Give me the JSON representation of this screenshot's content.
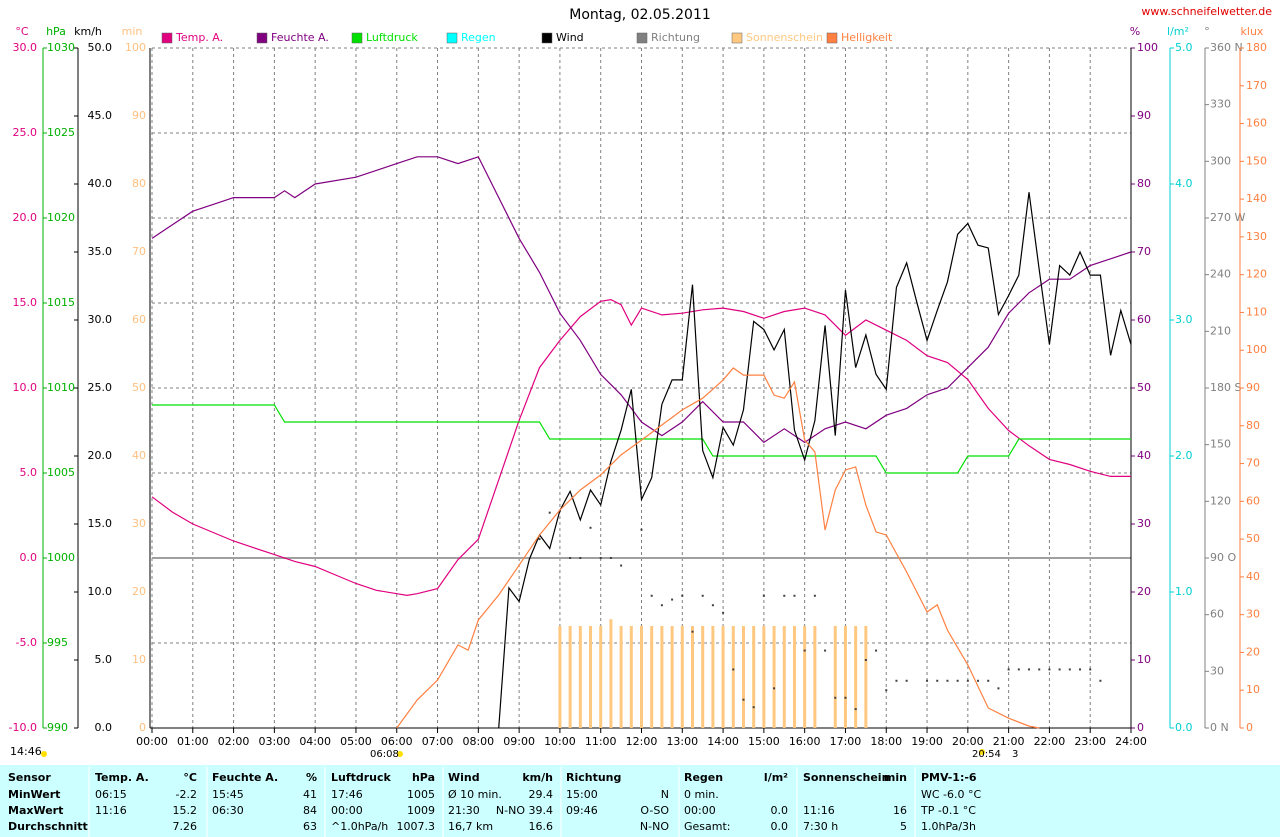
{
  "chart_data": {
    "type": "line",
    "title": "Montag, 02.05.2011",
    "source": "www.schneifelwetter.de",
    "time_stamp": "14:46",
    "sunrise": "06:08",
    "sunset": "20:54",
    "moon": "3",
    "xlim": [
      0,
      24
    ],
    "xticks": [
      {
        "value": 0,
        "label": "00:00"
      },
      {
        "value": 1,
        "label": "01:00"
      },
      {
        "value": 2,
        "label": "02:00"
      },
      {
        "value": 3,
        "label": "03:00"
      },
      {
        "value": 4,
        "label": "04:00"
      },
      {
        "value": 5,
        "label": "05:00"
      },
      {
        "value": 6,
        "label": "06:00"
      },
      {
        "value": 7,
        "label": "07:00"
      },
      {
        "value": 8,
        "label": "08:00"
      },
      {
        "value": 9,
        "label": "09:00"
      },
      {
        "value": 10,
        "label": "10:00"
      },
      {
        "value": 11,
        "label": "11:00"
      },
      {
        "value": 12,
        "label": "12:00"
      },
      {
        "value": 13,
        "label": "13:00"
      },
      {
        "value": 14,
        "label": "14:00"
      },
      {
        "value": 15,
        "label": "15:00"
      },
      {
        "value": 16,
        "label": "16:00"
      },
      {
        "value": 17,
        "label": "17:00"
      },
      {
        "value": 18,
        "label": "18:00"
      },
      {
        "value": 19,
        "label": "19:00"
      },
      {
        "value": 20,
        "label": "20:00"
      },
      {
        "value": 21,
        "label": "21:00"
      },
      {
        "value": 22,
        "label": "22:00"
      },
      {
        "value": 23,
        "label": "23:00"
      },
      {
        "value": 24,
        "label": "24:00"
      }
    ],
    "grid": true,
    "axes": [
      {
        "label": "°C",
        "color": "#e0007f",
        "grid": true,
        "ylim": [
          -10,
          30
        ],
        "yticks": [
          {
            "value": -10,
            "label": "-10.0"
          },
          {
            "value": -5,
            "label": "-5.0"
          },
          {
            "value": 0,
            "label": "0.0"
          },
          {
            "value": 5,
            "label": "5.0"
          },
          {
            "value": 10,
            "label": "10.0"
          },
          {
            "value": 15,
            "label": "15.0"
          },
          {
            "value": 20,
            "label": "20.0"
          },
          {
            "value": 25,
            "label": "25.0"
          },
          {
            "value": 30,
            "label": "30.0"
          }
        ]
      },
      {
        "label": "hPa",
        "color": "#00b000",
        "ylim": [
          990,
          1030
        ],
        "yticks": [
          990,
          995,
          1000,
          1005,
          1010,
          1015,
          1020,
          1025,
          1030
        ]
      },
      {
        "label": "km/h",
        "color": "#000000",
        "ylim": [
          0,
          50
        ],
        "yticks": [
          {
            "value": 0,
            "label": "0.0"
          },
          {
            "value": 5,
            "label": "5.0"
          },
          {
            "value": 10,
            "label": "10.0"
          },
          {
            "value": 15,
            "label": "15.0"
          },
          {
            "value": 20,
            "label": "20.0"
          },
          {
            "value": 25,
            "label": "25.0"
          },
          {
            "value": 30,
            "label": "30.0"
          },
          {
            "value": 35,
            "label": "35.0"
          },
          {
            "value": 40,
            "label": "40.0"
          },
          {
            "value": 45,
            "label": "45.0"
          },
          {
            "value": 50,
            "label": "50.0"
          }
        ]
      },
      {
        "label": "min",
        "color": "#ffc080",
        "ylim": [
          0,
          100
        ],
        "yticks": [
          0,
          10,
          20,
          30,
          40,
          50,
          60,
          70,
          80,
          90,
          100
        ]
      },
      {
        "label": "%",
        "color": "#800080",
        "ylim": [
          0,
          100
        ],
        "yticks": [
          0,
          10,
          20,
          30,
          40,
          50,
          60,
          70,
          80,
          90,
          100
        ]
      },
      {
        "label": "l/m²",
        "color": "#00d0d0",
        "ylim": [
          0,
          5
        ],
        "yticks": [
          {
            "value": 0,
            "label": "0.0"
          },
          {
            "value": 1,
            "label": "1.0"
          },
          {
            "value": 2,
            "label": "2.0"
          },
          {
            "value": 3,
            "label": "3.0"
          },
          {
            "value": 4,
            "label": "4.0"
          },
          {
            "value": 5,
            "label": "5.0"
          }
        ]
      },
      {
        "label": "°",
        "color": "#808080",
        "ylim": [
          0,
          360
        ],
        "yticks": [
          {
            "value": 0,
            "label": "0 N"
          },
          30,
          60,
          {
            "value": 90,
            "label": "90 O"
          },
          120,
          150,
          {
            "value": 180,
            "label": "180 S"
          },
          210,
          240,
          {
            "value": 270,
            "label": "270 W"
          },
          300,
          330,
          {
            "value": 360,
            "label": "360 N"
          }
        ]
      },
      {
        "label": "klux",
        "color": "#ff8040",
        "ylim": [
          0,
          180
        ],
        "yticks": [
          0,
          10,
          20,
          30,
          40,
          50,
          60,
          70,
          80,
          90,
          100,
          110,
          120,
          130,
          140,
          150,
          160,
          170,
          180
        ]
      }
    ],
    "series": [
      {
        "name": "Temp. A.",
        "color": "#e0007f",
        "type": "line",
        "axis": "°C",
        "x": [
          0,
          0.5,
          1,
          1.5,
          2,
          2.5,
          3,
          3.5,
          4,
          4.5,
          5,
          5.5,
          6,
          6.25,
          6.5,
          7,
          7.5,
          8,
          8.5,
          9,
          9.5,
          10,
          10.5,
          11,
          11.25,
          11.5,
          11.75,
          12,
          12.5,
          13,
          13.5,
          14,
          14.5,
          15,
          15.5,
          16,
          16.5,
          17,
          17.5,
          18,
          18.5,
          19,
          19.5,
          20,
          20.5,
          21,
          21.5,
          22,
          22.5,
          23,
          23.5,
          24
        ],
        "values": [
          3.6,
          2.7,
          2.0,
          1.5,
          1.0,
          0.6,
          0.2,
          -0.2,
          -0.5,
          -1.0,
          -1.5,
          -1.9,
          -2.1,
          -2.2,
          -2.1,
          -1.8,
          -0.1,
          1.1,
          4.6,
          8.1,
          11.2,
          12.8,
          14.2,
          15.1,
          15.2,
          14.9,
          13.7,
          14.7,
          14.3,
          14.4,
          14.6,
          14.7,
          14.5,
          14.1,
          14.5,
          14.7,
          14.3,
          13.1,
          14.0,
          13.4,
          12.8,
          11.9,
          11.5,
          10.5,
          8.8,
          7.5,
          6.6,
          5.8,
          5.5,
          5.1,
          4.8,
          4.8
        ]
      },
      {
        "name": "Feuchte A.",
        "color": "#800080",
        "type": "line",
        "axis": "%",
        "x": [
          0,
          0.5,
          1,
          1.5,
          2,
          3,
          3.25,
          3.5,
          4,
          5,
          5.5,
          6,
          6.5,
          7,
          7.5,
          8,
          8.5,
          9,
          9.5,
          10,
          10.5,
          11,
          11.5,
          12,
          12.5,
          13,
          13.5,
          14,
          14.5,
          15,
          15.5,
          16,
          16.5,
          17,
          17.5,
          18,
          18.5,
          19,
          19.5,
          20,
          20.5,
          21,
          21.5,
          22,
          22.5,
          23,
          23.5,
          24
        ],
        "values": [
          72,
          74,
          76,
          77,
          78,
          78,
          79,
          78,
          80,
          81,
          82,
          83,
          84,
          84,
          83,
          84,
          78,
          72,
          67,
          61,
          57,
          52,
          49,
          45,
          43,
          45,
          48,
          45,
          45,
          42,
          44,
          42,
          44,
          45,
          44,
          46,
          47,
          49,
          50,
          53,
          56,
          61,
          64,
          66,
          66,
          68,
          69,
          70
        ]
      },
      {
        "name": "Luftdruck",
        "color": "#00e000",
        "type": "line",
        "axis": "hPa",
        "x": [
          0,
          3,
          3.25,
          9.5,
          9.75,
          13.5,
          13.75,
          17.75,
          18,
          19.75,
          20,
          21,
          21.25,
          24
        ],
        "values": [
          1009,
          1009,
          1008,
          1008,
          1007,
          1007,
          1006,
          1006,
          1005,
          1005,
          1006,
          1006,
          1007,
          1007
        ]
      },
      {
        "name": "Regen",
        "color": "#00ffff",
        "type": "bar",
        "axis": "l/m²",
        "x": [],
        "values": []
      },
      {
        "name": "Wind",
        "color": "#000000",
        "type": "line",
        "axis": "km/h",
        "x": [
          8.5,
          8.75,
          9,
          9.25,
          9.5,
          9.75,
          10,
          10.25,
          10.5,
          10.75,
          11,
          11.25,
          11.5,
          11.75,
          12,
          12.25,
          12.5,
          12.75,
          13,
          13.25,
          13.5,
          13.75,
          14,
          14.25,
          14.5,
          14.75,
          15,
          15.25,
          15.5,
          15.75,
          16,
          16.25,
          16.5,
          16.75,
          17,
          17.25,
          17.5,
          17.75,
          18,
          18.25,
          18.5,
          18.75,
          19,
          19.25,
          19.5,
          19.75,
          20,
          20.25,
          20.5,
          20.75,
          21,
          21.25,
          21.5,
          21.75,
          22,
          22.25,
          22.5,
          22.75,
          23,
          23.25,
          23.5,
          23.75,
          24
        ],
        "values": [
          0,
          10.3,
          9.3,
          12.4,
          14.2,
          13.2,
          16.0,
          17.4,
          15.3,
          17.5,
          16.4,
          19.6,
          21.9,
          24.9,
          16.8,
          18.4,
          23.8,
          25.6,
          25.6,
          32.6,
          20.4,
          18.4,
          22.1,
          20.8,
          23.4,
          29.9,
          29.3,
          27.8,
          29.3,
          21.9,
          19.7,
          22.6,
          29.6,
          21.5,
          32.2,
          26.5,
          28.9,
          26.0,
          24.9,
          32.4,
          34.2,
          31.3,
          28.5,
          30.7,
          32.8,
          36.3,
          37.1,
          35.5,
          35.3,
          30.4,
          31.8,
          33.3,
          39.4,
          33.7,
          28.2,
          34.0,
          33.3,
          35.0,
          33.3,
          33.3,
          27.4,
          30.7,
          28.2
        ]
      },
      {
        "name": "Richtung",
        "color": "#808080",
        "type": "scatter",
        "axis": "°",
        "x": [
          9.5,
          9.75,
          10,
          10.25,
          10.5,
          10.75,
          11,
          11.25,
          11.5,
          12,
          12.25,
          12.5,
          12.75,
          13,
          13.25,
          13.5,
          13.75,
          14,
          14.25,
          14.5,
          14.75,
          15,
          15.25,
          15.5,
          15.75,
          16,
          16.25,
          16.5,
          16.75,
          17,
          17.25,
          17.5,
          17.75,
          18,
          18.25,
          18.5,
          19,
          19.25,
          19.5,
          19.75,
          20,
          20.25,
          20.5,
          20.75,
          21,
          21.25,
          21.5,
          21.75,
          22,
          22.25,
          22.5,
          22.75,
          23,
          23.25
        ],
        "values": [
          100,
          114,
          115,
          90,
          90,
          106,
          90,
          90,
          86,
          105,
          70,
          65,
          68,
          70,
          51,
          70,
          65,
          61,
          31,
          15,
          11,
          70,
          21,
          70,
          70,
          41,
          70,
          41,
          16,
          16,
          10,
          36,
          41,
          20,
          25,
          25,
          25,
          25,
          25,
          25,
          25,
          25,
          25,
          21,
          31,
          31,
          31,
          31,
          31,
          31,
          31,
          31,
          31,
          25
        ]
      },
      {
        "name": "Sonnenschein",
        "color": "#ffc880",
        "type": "bar",
        "axis": "min",
        "x": [
          10,
          10.25,
          10.5,
          10.75,
          11,
          11.25,
          11.5,
          11.75,
          12,
          12.25,
          12.5,
          12.75,
          13,
          13.25,
          13.5,
          13.75,
          14,
          14.25,
          14.5,
          14.75,
          15,
          15.25,
          15.5,
          15.75,
          16,
          16.25,
          16.75,
          17,
          17.25,
          17.5
        ],
        "values": [
          15,
          15,
          15,
          15,
          15,
          16,
          15,
          15,
          15,
          15,
          15,
          15,
          15,
          15,
          15,
          15,
          15,
          15,
          15,
          15,
          15,
          15,
          15,
          15,
          15,
          15,
          15,
          15,
          15,
          15
        ]
      },
      {
        "name": "Helligkeit",
        "color": "#ff8040",
        "type": "line",
        "axis": "klux",
        "x": [
          6,
          6.5,
          7,
          7.5,
          7.75,
          8,
          8.5,
          9,
          9.5,
          10,
          10.5,
          11,
          11.5,
          12,
          12.5,
          13,
          13.5,
          14,
          14.25,
          14.5,
          15,
          15.25,
          15.5,
          15.75,
          16,
          16.25,
          16.5,
          16.75,
          17,
          17.25,
          17.5,
          17.75,
          18,
          18.5,
          19,
          19.25,
          19.5,
          20,
          20.5,
          21,
          21.5,
          21.75
        ],
        "values": [
          0,
          7.4,
          12.7,
          22.0,
          20.6,
          28.6,
          35.2,
          43.1,
          51.1,
          57.7,
          63.0,
          67.0,
          72.3,
          76.2,
          80.2,
          84.2,
          87.3,
          92.1,
          95.3,
          93.4,
          93.4,
          88.1,
          87.3,
          91.6,
          76.2,
          73.1,
          52.4,
          63.0,
          68.3,
          69.1,
          59.0,
          51.9,
          51.1,
          41.3,
          30.7,
          32.6,
          25.9,
          16.7,
          5.3,
          2.6,
          0.5,
          0
        ]
      }
    ]
  },
  "table": {
    "header": {
      "label": "Sensor",
      "groups": [
        {
          "l": "Temp. A.",
          "r": "°C"
        },
        {
          "l": "Feuchte A.",
          "r": "%"
        },
        {
          "l": "Luftdruck",
          "r": "hPa"
        },
        {
          "l": "Wind",
          "r": "km/h"
        },
        {
          "l": "Richtung"
        },
        {
          "l": "Regen",
          "r": "l/m²"
        },
        {
          "l": "Sonnenschein",
          "r": "min"
        },
        {
          "l": "PMV-1:-6"
        }
      ]
    },
    "rows": [
      {
        "label": "MinWert",
        "groups": [
          {
            "l": "06:15",
            "r": "-2.2"
          },
          {
            "l": "15:45",
            "r": "41"
          },
          {
            "l": "17:46",
            "r": "1005"
          },
          {
            "l": "Ø 10 min.",
            "r": "29.4"
          },
          {
            "l": "15:00",
            "r": "N"
          },
          {
            "l": "0 min."
          },
          {},
          {
            "l": "WC -6.0 °C"
          }
        ]
      },
      {
        "label": "MaxWert",
        "groups": [
          {
            "l": "11:16",
            "r": "15.2"
          },
          {
            "l": "06:30",
            "r": "84"
          },
          {
            "l": "00:00",
            "r": "1009"
          },
          {
            "l": "21:30",
            "r": "N-NO 39.4"
          },
          {
            "l": "09:46",
            "r": "O-SO"
          },
          {
            "l": "00:00",
            "r": "0.0"
          },
          {
            "l": "11:16",
            "r": "16"
          },
          {
            "l": "TP -0.1 °C"
          }
        ]
      },
      {
        "label": "Durchschnitt",
        "groups": [
          {
            "r": "7.26"
          },
          {
            "r": "63"
          },
          {
            "l": "^1.0hPa/h",
            "r": "1007.3"
          },
          {
            "l": "16,7 km",
            "r": "16.6"
          },
          {
            "r": "N-NO"
          },
          {
            "l": "Gesamt:",
            "r": "0.0"
          },
          {
            "l": "7:30 h",
            "r": "5"
          },
          {
            "l": "1.0hPa/3h"
          }
        ]
      }
    ]
  }
}
